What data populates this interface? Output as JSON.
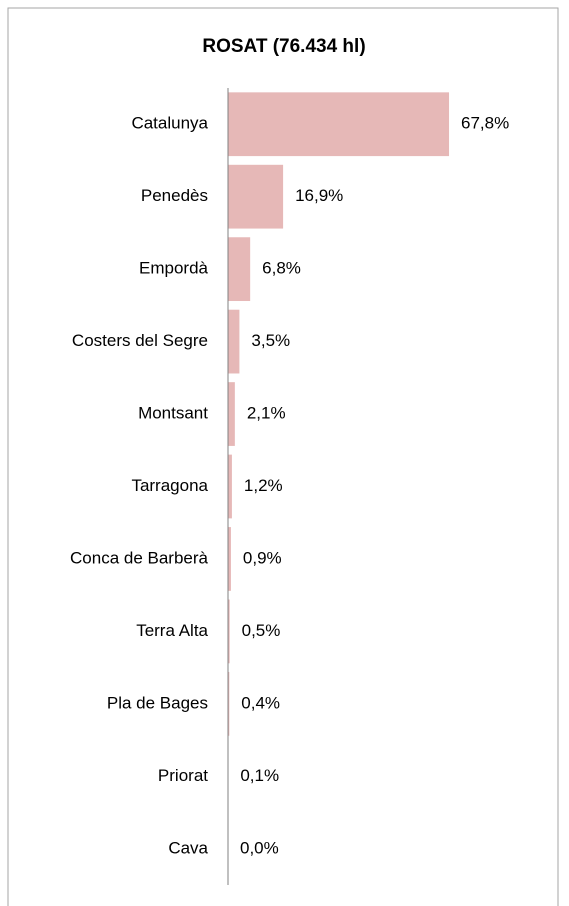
{
  "chart_data": {
    "type": "bar",
    "orientation": "horizontal",
    "title": "ROSAT (76.434 hl)",
    "categories": [
      "Catalunya",
      "Penedès",
      "Empordà",
      "Costers del Segre",
      "Montsant",
      "Tarragona",
      "Conca de Barberà",
      "Terra Alta",
      "Pla de Bages",
      "Priorat",
      "Cava"
    ],
    "values": [
      67.8,
      16.9,
      6.8,
      3.5,
      2.1,
      1.2,
      0.9,
      0.5,
      0.4,
      0.1,
      0.0
    ],
    "value_labels": [
      "67,8%",
      "16,9%",
      "6,8%",
      "3,5%",
      "2,1%",
      "1,2%",
      "0,9%",
      "0,5%",
      "0,4%",
      "0,1%",
      "0,0%"
    ],
    "color": "#e6b8b7",
    "xlim": [
      0,
      100
    ]
  }
}
